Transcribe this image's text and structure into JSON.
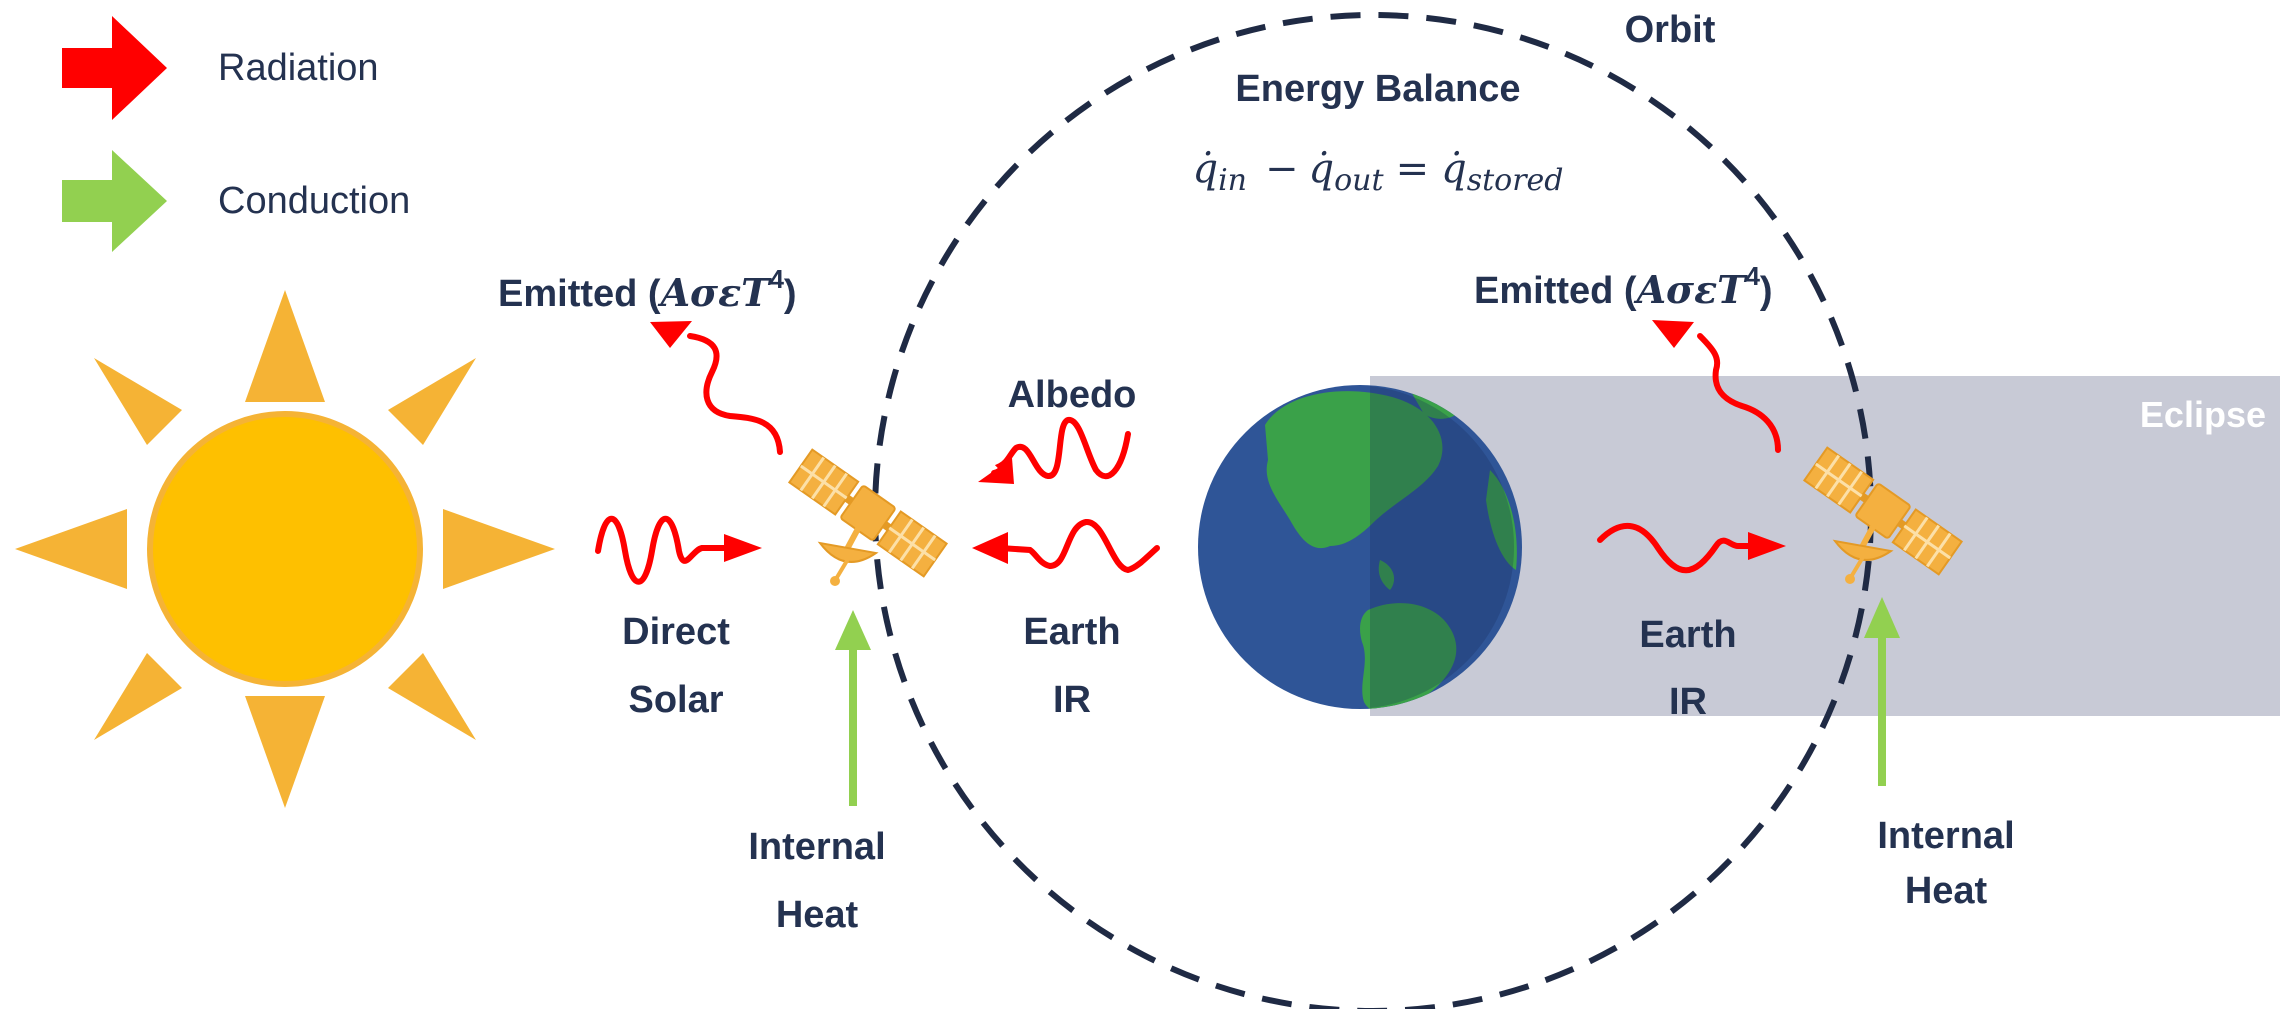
{
  "legend": {
    "radiation_label": "Radiation",
    "conduction_label": "Conduction",
    "radiation_color": "#ff0000",
    "conduction_color": "#92d050"
  },
  "orbit_label": "Orbit",
  "energy_balance": {
    "title": "Energy Balance",
    "equation": {
      "q_in": "q̇",
      "in_sub": "in",
      "minus": "−",
      "q_out": "q̇",
      "out_sub": "out",
      "equals": "=",
      "q_stored": "q̇",
      "stored_sub": "stored"
    }
  },
  "emitted_left": {
    "prefix": "Emitted (",
    "formula": "AσεT",
    "exponent": "4",
    "suffix": ")"
  },
  "emitted_right": {
    "prefix": "Emitted (",
    "formula": "AσεT",
    "exponent": "4",
    "suffix": ")"
  },
  "albedo_label": "Albedo",
  "direct_solar": {
    "line1": "Direct",
    "line2": "Solar"
  },
  "earth_ir_left": {
    "line1": "Earth",
    "line2": "IR"
  },
  "earth_ir_right": {
    "line1": "Earth",
    "line2": "IR"
  },
  "internal_heat_left": {
    "line1": "Internal",
    "line2": "Heat"
  },
  "internal_heat_right": {
    "line1": "Internal",
    "line2": "Heat"
  },
  "eclipse_label": "Eclipse",
  "colors": {
    "sun": "#fec000",
    "sun_rays": "#f5b335",
    "satellite": "#f4b040",
    "ocean": "#2f5597",
    "land": "#3aa149",
    "eclipse_band": "#c8cad6",
    "orbit": "#1f2a44",
    "text": "#243250"
  }
}
